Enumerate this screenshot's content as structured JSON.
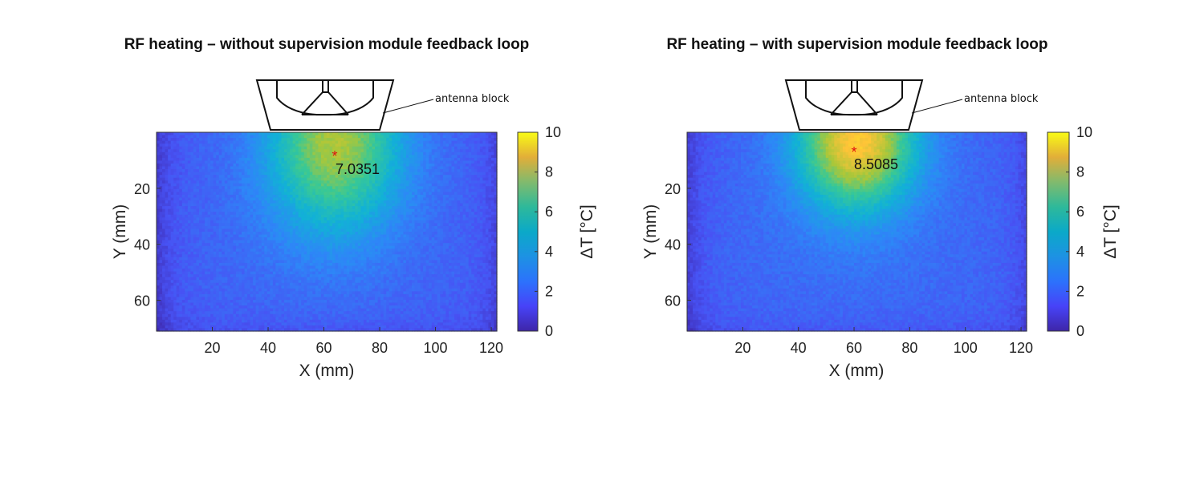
{
  "chart_data": [
    {
      "type": "heatmap",
      "title": "RF heating – without supervision module feedback loop",
      "xlabel": "X (mm)",
      "ylabel": "Y (mm)",
      "xlim": [
        0,
        122
      ],
      "ylim": [
        0,
        71
      ],
      "xticks": [
        20,
        40,
        60,
        80,
        100,
        120
      ],
      "yticks": [
        20,
        40,
        60
      ],
      "colorbar": {
        "label": "ΔT [°C]",
        "range": [
          0,
          10
        ],
        "ticks": [
          0,
          2,
          4,
          6,
          8,
          10
        ]
      },
      "peak": {
        "x": 64,
        "y": 9.5,
        "label": "7.0351"
      },
      "hotspot": {
        "x": 64,
        "y": 3,
        "sigma_x": 17,
        "sigma_y": 22
      },
      "baseline_dT": 1.8,
      "annotation": "antenna block"
    },
    {
      "type": "heatmap",
      "title": "RF heating – with supervision module feedback loop",
      "xlabel": "X (mm)",
      "ylabel": "Y (mm)",
      "xlim": [
        0,
        122
      ],
      "ylim": [
        0,
        71
      ],
      "xticks": [
        20,
        40,
        60,
        80,
        100,
        120
      ],
      "yticks": [
        20,
        40,
        60
      ],
      "colorbar": {
        "label": "ΔT [°C]",
        "range": [
          0,
          10
        ],
        "ticks": [
          0,
          2,
          4,
          6,
          8,
          10
        ]
      },
      "peak": {
        "x": 60,
        "y": 7.5,
        "label": "8.5085"
      },
      "hotspot": {
        "x": 61,
        "y": 3,
        "sigma_x": 15,
        "sigma_y": 17
      },
      "baseline_dT": 1.9,
      "annotation": "antenna block"
    }
  ]
}
